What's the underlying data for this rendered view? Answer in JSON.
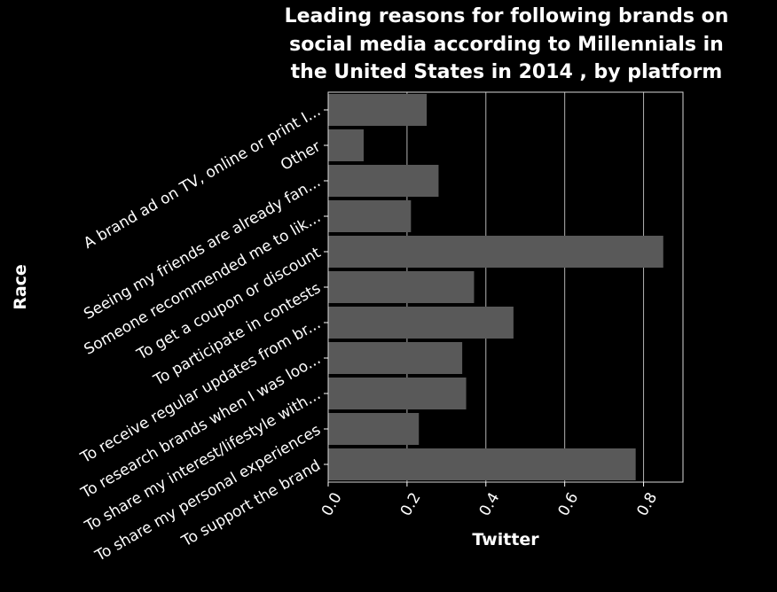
{
  "chart_data": {
    "type": "bar",
    "orientation": "horizontal",
    "title_lines": [
      "Leading reasons for following brands on",
      "social media according to Millennials in",
      "the United States in 2014 , by platform"
    ],
    "xlabel": "Twitter",
    "ylabel": "Race",
    "xlim": [
      0,
      0.9
    ],
    "xticks": [
      0.0,
      0.2,
      0.4,
      0.6,
      0.8
    ],
    "xtick_labels": [
      "0.0",
      "0.2",
      "0.4",
      "0.6",
      "0.8"
    ],
    "grid": "vertical",
    "bar_color": "#595959",
    "background_color": "#000000",
    "categories": [
      "A brand ad on TV, online or print I...",
      "Other",
      "Seeing my friends are already fan...",
      "Someone recommended me to lik...",
      "To get a coupon or discount",
      "To participate in contests",
      "To receive regular updates from br...",
      "To research brands when I was loo...",
      "To share my interest/lifestyle with...",
      "To share my personal experiences",
      "To support the brand"
    ],
    "values": [
      0.25,
      0.09,
      0.28,
      0.21,
      0.85,
      0.37,
      0.47,
      0.34,
      0.35,
      0.23,
      0.78
    ]
  }
}
